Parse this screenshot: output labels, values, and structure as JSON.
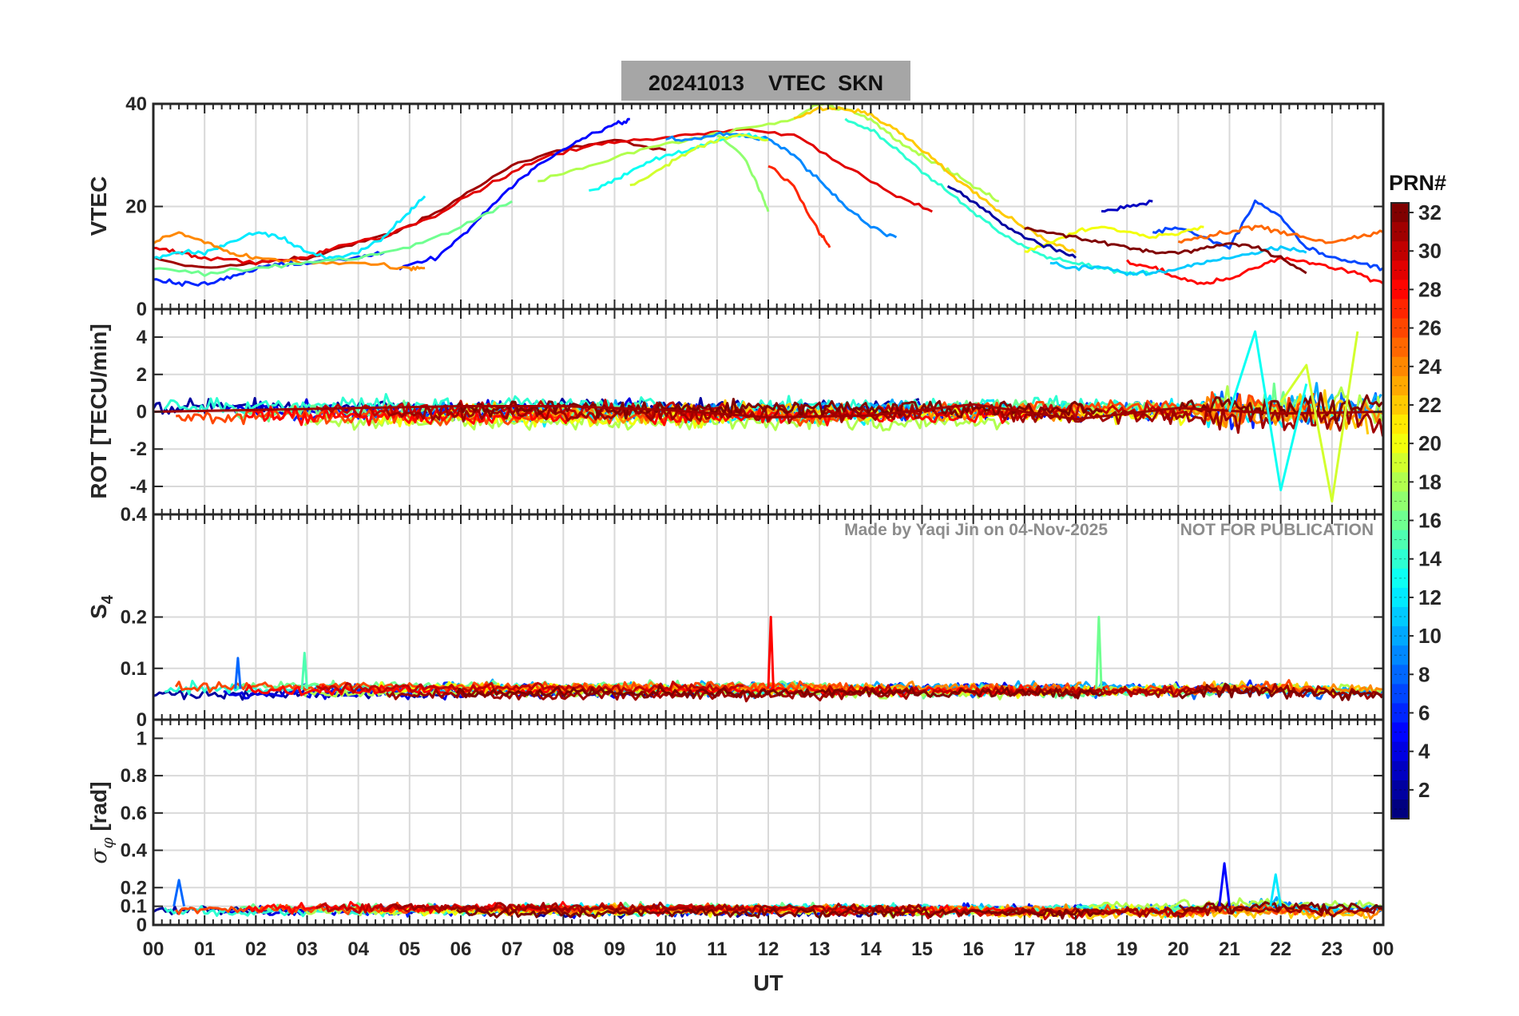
{
  "figure": {
    "title": "20241013    VTEC  SKN",
    "watermark_left": "Made by Yaqi Jin on 04-Nov-2025",
    "watermark_right": "NOT FOR PUBLICATION"
  },
  "colorbar": {
    "title": "PRN#",
    "range": [
      1,
      32
    ],
    "ticks": [
      "2",
      "4",
      "6",
      "8",
      "10",
      "12",
      "14",
      "16",
      "18",
      "20",
      "22",
      "24",
      "26",
      "28",
      "30",
      "32"
    ],
    "colormap": "jet"
  },
  "chart_data": [
    {
      "type": "line",
      "panel": "vtec",
      "ylabel": "VTEC",
      "xlabel": "",
      "xlim": [
        0,
        24
      ],
      "ylim": [
        0,
        40
      ],
      "yticks": [
        "0",
        "20",
        "40"
      ],
      "grid": true,
      "series": [
        {
          "prn": 31,
          "x": [
            0.0,
            1.0,
            2.0,
            3.0,
            4.0,
            5.0,
            6.0,
            7.0,
            8.0,
            9.0,
            10.0
          ],
          "y": [
            10,
            8,
            9,
            10,
            13,
            16,
            22,
            28,
            31,
            33,
            31
          ]
        },
        {
          "prn": 29,
          "x": [
            0.0,
            0.5,
            1.0,
            2.0,
            3.0,
            3.5,
            4.5,
            5.5,
            6.5,
            7.5,
            8.5,
            9.5,
            10.5,
            11.5,
            12.5,
            13.5,
            14.5,
            15.2
          ],
          "y": [
            12,
            11,
            10,
            9,
            10,
            12,
            14,
            18,
            24,
            29,
            32,
            33,
            34,
            35,
            34,
            28,
            22,
            19
          ]
        },
        {
          "prn": 5,
          "x": [
            4.8,
            5.5,
            6.0,
            6.5,
            7.0,
            7.5,
            8.0,
            8.5,
            9.0,
            9.3
          ],
          "y": [
            8,
            10,
            14,
            19,
            24,
            28,
            31,
            34,
            36,
            37
          ]
        },
        {
          "prn": 12,
          "x": [
            0.0,
            0.5,
            1.0,
            1.5,
            2.0,
            2.5,
            3.0,
            3.5,
            4.0,
            4.5,
            5.0,
            5.3
          ],
          "y": [
            10,
            11,
            11,
            13,
            15,
            14,
            11,
            10,
            11,
            14,
            19,
            22
          ]
        },
        {
          "prn": 24,
          "x": [
            0.0,
            0.5,
            1.0,
            1.5,
            2.0,
            3.0,
            4.0,
            5.0,
            5.3
          ],
          "y": [
            13,
            15,
            13,
            11,
            10,
            9,
            9,
            8,
            8
          ]
        },
        {
          "prn": 18,
          "x": [
            7.5,
            8.5,
            9.5,
            10.5,
            11.5,
            12.5,
            13.0,
            13.5,
            14.0,
            14.5,
            15.0,
            15.5,
            16.0,
            16.5
          ],
          "y": [
            25,
            28,
            31,
            33,
            35,
            37,
            40,
            39,
            37,
            33,
            30,
            27,
            24,
            21
          ]
        },
        {
          "prn": 22,
          "x": [
            12.5,
            13.0,
            13.5,
            14.0,
            14.5,
            15.0,
            15.5,
            16.0,
            16.5,
            17.0,
            17.5,
            18.0
          ],
          "y": [
            37,
            39,
            39,
            38,
            35,
            31,
            27,
            23,
            19,
            16,
            13,
            11
          ]
        },
        {
          "prn": 14,
          "x": [
            13.5,
            14.0,
            14.5,
            15.0,
            15.5,
            16.0,
            16.5,
            17.0,
            17.5,
            18.0,
            18.5,
            19.0,
            19.5
          ],
          "y": [
            37,
            35,
            31,
            27,
            23,
            19,
            15,
            12,
            10,
            9,
            8,
            7,
            7
          ]
        },
        {
          "prn": 9,
          "x": [
            10.0,
            10.5,
            11.0,
            11.5,
            12.0,
            12.5,
            13.0,
            13.5,
            14.0,
            14.5
          ],
          "y": [
            33,
            33,
            34,
            34,
            33,
            30,
            25,
            20,
            16,
            14
          ]
        },
        {
          "prn": 27,
          "x": [
            12.0,
            12.5,
            13.0,
            13.2
          ],
          "y": [
            28,
            24,
            15,
            12
          ]
        },
        {
          "prn": 17,
          "x": [
            11.0,
            11.5,
            11.8,
            12.0
          ],
          "y": [
            34,
            30,
            24,
            19
          ]
        },
        {
          "prn": 13,
          "x": [
            8.5,
            9.0,
            9.5,
            10.0,
            10.5,
            11.0,
            11.5,
            12.0
          ],
          "y": [
            23,
            25,
            28,
            30,
            31,
            33,
            34,
            33
          ]
        },
        {
          "prn": 19,
          "x": [
            9.3,
            10.0,
            10.5,
            11.0,
            11.5,
            12.0
          ],
          "y": [
            24,
            28,
            31,
            33,
            34,
            33
          ]
        },
        {
          "prn": 3,
          "x": [
            18.5,
            19.0,
            19.5
          ],
          "y": [
            19,
            20,
            21
          ]
        },
        {
          "prn": 7,
          "x": [
            19.5,
            20.0,
            20.5,
            21.0,
            21.5,
            22.0,
            22.5,
            23.0,
            23.5,
            24.0
          ],
          "y": [
            15,
            16,
            14,
            12,
            21,
            18,
            12,
            10,
            9,
            8
          ]
        },
        {
          "prn": 28,
          "x": [
            19.0,
            19.5,
            20.0,
            20.5,
            21.0,
            21.5,
            22.0,
            22.5,
            23.0,
            23.5,
            24.0
          ],
          "y": [
            9,
            8,
            6,
            5,
            6,
            8,
            10,
            9,
            8,
            7,
            5
          ]
        },
        {
          "prn": 20,
          "x": [
            17.0,
            17.5,
            18.0,
            18.5,
            19.0,
            19.5,
            20.0,
            20.5
          ],
          "y": [
            11,
            13,
            15,
            16,
            15,
            14,
            15,
            16
          ]
        },
        {
          "prn": 11,
          "x": [
            17.5,
            18.0,
            18.5,
            19.0,
            19.5,
            20.0,
            20.5,
            21.0,
            21.5,
            22.0,
            22.5
          ],
          "y": [
            9,
            8,
            8,
            7,
            7,
            8,
            9,
            10,
            11,
            12,
            11
          ]
        },
        {
          "prn": 32,
          "x": [
            17.0,
            17.5,
            18.0,
            18.5,
            19.0,
            19.5,
            20.0,
            20.5,
            21.0,
            21.5,
            22.0,
            22.5
          ],
          "y": [
            16,
            15,
            14,
            13,
            12,
            11,
            11,
            12,
            13,
            12,
            10,
            7
          ]
        },
        {
          "prn": 25,
          "x": [
            20.0,
            20.5,
            21.0,
            21.5,
            22.0,
            22.5,
            23.0,
            23.5,
            24.0
          ],
          "y": [
            13,
            14,
            15,
            16,
            15,
            14,
            13,
            14,
            15
          ]
        },
        {
          "prn": 6,
          "x": [
            0.0,
            0.5,
            1.0,
            1.5,
            2.0,
            2.5,
            3.0,
            4.0,
            4.5
          ],
          "y": [
            6,
            5,
            5,
            6,
            8,
            9,
            9,
            10,
            11
          ]
        },
        {
          "prn": 16,
          "x": [
            0.0,
            1.0,
            2.0,
            3.0,
            4.0,
            5.0,
            6.0,
            7.0
          ],
          "y": [
            8,
            7,
            8,
            9,
            10,
            12,
            16,
            21
          ]
        },
        {
          "prn": 2,
          "x": [
            15.5,
            16.0,
            16.5,
            17.0,
            17.5,
            18.0
          ],
          "y": [
            24,
            21,
            17,
            14,
            12,
            10
          ]
        }
      ]
    },
    {
      "type": "line",
      "panel": "rot",
      "ylabel": "ROT [TECU/min]",
      "xlabel": "",
      "xlim": [
        0,
        24
      ],
      "ylim": [
        -5.5,
        5.5
      ],
      "yticks": [
        "-4",
        "-2",
        "0",
        "2",
        "4"
      ],
      "grid": true,
      "series": [
        {
          "prn": 31,
          "x": [
            0,
            2,
            4,
            6,
            8,
            10,
            12,
            14,
            16,
            18,
            20,
            22,
            24
          ],
          "y": [
            0,
            0.1,
            0.2,
            0.3,
            0.3,
            0.1,
            -0.3,
            -0.2,
            0.4,
            -0.4,
            0.2,
            -0.1,
            0
          ]
        },
        {
          "prn": 13,
          "x": [
            21,
            21.5,
            22,
            22.5
          ],
          "y": [
            0,
            4.3,
            -4.2,
            1.5
          ]
        },
        {
          "prn": 19,
          "x": [
            22,
            22.5,
            23,
            23.5
          ],
          "y": [
            0.5,
            2.5,
            -4.8,
            4.3
          ]
        }
      ]
    },
    {
      "type": "line",
      "panel": "s4",
      "ylabel": "S4",
      "xlabel": "",
      "xlim": [
        0,
        24
      ],
      "ylim": [
        0,
        0.4
      ],
      "yticks": [
        "0",
        "0.1",
        "0.2",
        "0.4"
      ],
      "grid": true,
      "series": [
        {
          "prn": 28,
          "x": [
            12.0,
            12.05,
            12.1
          ],
          "y": [
            0.06,
            0.2,
            0.06
          ]
        },
        {
          "prn": 16,
          "x": [
            18.4,
            18.45,
            18.5
          ],
          "y": [
            0.06,
            0.2,
            0.06
          ]
        },
        {
          "prn": 8,
          "x": [
            1.6,
            1.65,
            1.7
          ],
          "y": [
            0.06,
            0.12,
            0.06
          ]
        },
        {
          "prn": 15,
          "x": [
            2.9,
            2.95,
            3.0
          ],
          "y": [
            0.06,
            0.13,
            0.06
          ]
        }
      ]
    },
    {
      "type": "line",
      "panel": "sigma_phi",
      "ylabel": "σφ [rad]",
      "xlabel": "UT",
      "xlim": [
        0,
        24
      ],
      "ylim": [
        0,
        1.1
      ],
      "yticks": [
        "0",
        "0.1",
        "0.2",
        "0.4",
        "0.6",
        "0.8",
        "1"
      ],
      "xticks": [
        "00",
        "01",
        "02",
        "03",
        "04",
        "05",
        "06",
        "07",
        "08",
        "09",
        "10",
        "11",
        "12",
        "13",
        "14",
        "15",
        "16",
        "17",
        "18",
        "19",
        "20",
        "21",
        "22",
        "23",
        "00"
      ],
      "grid": true,
      "series": [
        {
          "prn": 5,
          "x": [
            20.8,
            20.9,
            21.0
          ],
          "y": [
            0.1,
            0.33,
            0.1
          ]
        },
        {
          "prn": 12,
          "x": [
            21.8,
            21.9,
            22.0
          ],
          "y": [
            0.1,
            0.27,
            0.1
          ]
        },
        {
          "prn": 8,
          "x": [
            0.4,
            0.5,
            0.6
          ],
          "y": [
            0.1,
            0.24,
            0.1
          ]
        }
      ]
    }
  ]
}
